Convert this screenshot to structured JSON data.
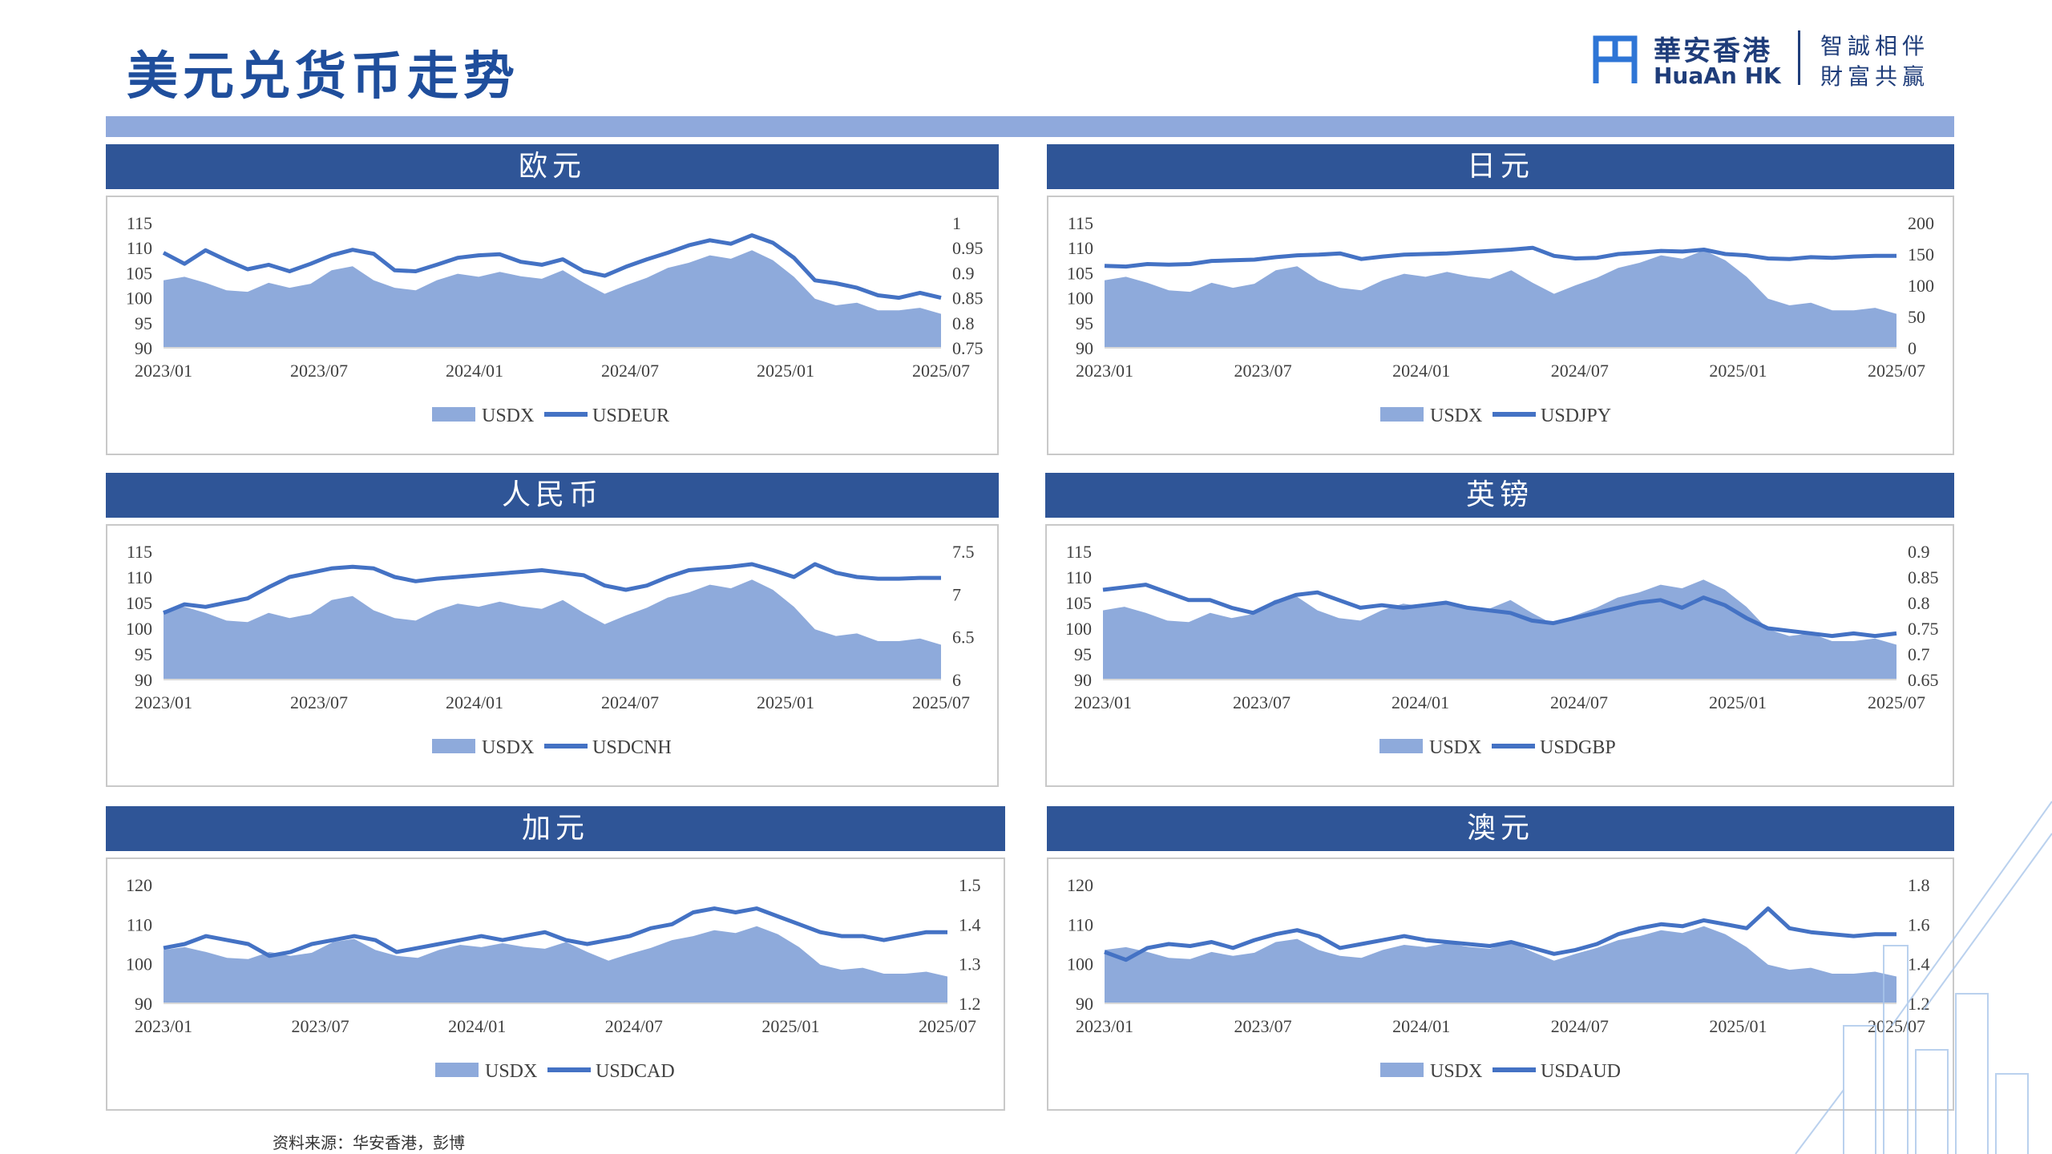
{
  "header": {
    "title": "美元兑货币走势",
    "logo_cn": "華安香港",
    "logo_en": "HuaAn HK",
    "slogan_line1": "智誠相伴",
    "slogan_line2": "財富共贏"
  },
  "footer": {
    "source": "资料来源：华安香港，彭博"
  },
  "colors": {
    "header_bg": "#2f5597",
    "band": "#8fa9dc",
    "area": "#8eaadb",
    "line": "#4472c4",
    "title": "#1f4e9c"
  },
  "chart_data": [
    {
      "type": "area+line",
      "title": "欧元",
      "x_ticks": [
        "2023/01",
        "2023/07",
        "2024/01",
        "2024/07",
        "2025/01",
        "2025/07"
      ],
      "left_axis": {
        "ylim": [
          90,
          115
        ],
        "ticks": [
          "115",
          "110",
          "105",
          "100",
          "95",
          "90"
        ]
      },
      "right_axis": {
        "ylim": [
          0.75,
          1.0
        ],
        "ticks": [
          "1",
          "0.95",
          "0.9",
          "0.85",
          "0.8",
          "0.75"
        ]
      },
      "series": [
        {
          "name": "USDX",
          "kind": "area",
          "axis": "left",
          "values": [
            103.5,
            104.2,
            103.0,
            101.5,
            101.2,
            103.0,
            102.0,
            102.8,
            105.5,
            106.3,
            103.5,
            102.0,
            101.5,
            103.5,
            104.8,
            104.2,
            105.2,
            104.3,
            103.8,
            105.5,
            103.0,
            100.8,
            102.5,
            104.0,
            106.0,
            107.0,
            108.5,
            107.8,
            109.5,
            107.5,
            104.2,
            99.8,
            98.5,
            99.0,
            97.5,
            97.5,
            98.0,
            96.8
          ]
        },
        {
          "name": "USDEUR",
          "kind": "line",
          "axis": "right",
          "values": [
            0.94,
            0.918,
            0.945,
            0.925,
            0.907,
            0.916,
            0.903,
            0.918,
            0.935,
            0.946,
            0.938,
            0.905,
            0.903,
            0.916,
            0.93,
            0.935,
            0.937,
            0.922,
            0.916,
            0.927,
            0.903,
            0.894,
            0.912,
            0.927,
            0.94,
            0.955,
            0.965,
            0.958,
            0.975,
            0.96,
            0.93,
            0.885,
            0.879,
            0.87,
            0.855,
            0.85,
            0.86,
            0.85
          ]
        }
      ]
    },
    {
      "type": "area+line",
      "title": "日元",
      "x_ticks": [
        "2023/01",
        "2023/07",
        "2024/01",
        "2024/07",
        "2025/01",
        "2025/07"
      ],
      "left_axis": {
        "ylim": [
          90,
          115
        ],
        "ticks": [
          "115",
          "110",
          "105",
          "100",
          "95",
          "90"
        ]
      },
      "right_axis": {
        "ylim": [
          0,
          200
        ],
        "ticks": [
          "200",
          "150",
          "100",
          "50",
          "0"
        ]
      },
      "series": [
        {
          "name": "USDX",
          "kind": "area",
          "axis": "left",
          "values": [
            103.5,
            104.2,
            103.0,
            101.5,
            101.2,
            103.0,
            102.0,
            102.8,
            105.5,
            106.3,
            103.5,
            102.0,
            101.5,
            103.5,
            104.8,
            104.2,
            105.2,
            104.3,
            103.8,
            105.5,
            103.0,
            100.8,
            102.5,
            104.0,
            106.0,
            107.0,
            108.5,
            107.8,
            109.5,
            107.5,
            104.2,
            99.8,
            98.5,
            99.0,
            97.5,
            97.5,
            98.0,
            96.8
          ]
        },
        {
          "name": "USDJPY",
          "kind": "line",
          "axis": "right",
          "values": [
            131,
            130,
            134,
            133,
            134,
            139,
            140,
            141,
            145,
            148,
            149,
            151,
            142,
            146,
            149,
            150,
            151,
            153,
            155,
            157,
            160,
            147,
            143,
            144,
            150,
            152,
            155,
            154,
            157,
            150,
            148,
            143,
            142,
            145,
            144,
            146,
            147,
            147
          ]
        }
      ]
    },
    {
      "type": "area+line",
      "title": "人民币",
      "x_ticks": [
        "2023/01",
        "2023/07",
        "2024/01",
        "2024/07",
        "2025/01",
        "2025/07"
      ],
      "left_axis": {
        "ylim": [
          90,
          115
        ],
        "ticks": [
          "115",
          "110",
          "105",
          "100",
          "95",
          "90"
        ]
      },
      "right_axis": {
        "ylim": [
          6,
          7.5
        ],
        "ticks": [
          "7.5",
          "7",
          "6.5",
          "6"
        ]
      },
      "series": [
        {
          "name": "USDX",
          "kind": "area",
          "axis": "left",
          "values": [
            103.5,
            104.2,
            103.0,
            101.5,
            101.2,
            103.0,
            102.0,
            102.8,
            105.5,
            106.3,
            103.5,
            102.0,
            101.5,
            103.5,
            104.8,
            104.2,
            105.2,
            104.3,
            103.8,
            105.5,
            103.0,
            100.8,
            102.5,
            104.0,
            106.0,
            107.0,
            108.5,
            107.8,
            109.5,
            107.5,
            104.2,
            99.8,
            98.5,
            99.0,
            97.5,
            97.5,
            98.0,
            96.8
          ]
        },
        {
          "name": "USDCNH",
          "kind": "line",
          "axis": "right",
          "values": [
            6.78,
            6.88,
            6.85,
            6.9,
            6.95,
            7.08,
            7.2,
            7.25,
            7.3,
            7.32,
            7.3,
            7.2,
            7.15,
            7.18,
            7.2,
            7.22,
            7.24,
            7.26,
            7.28,
            7.25,
            7.22,
            7.1,
            7.05,
            7.1,
            7.2,
            7.28,
            7.3,
            7.32,
            7.35,
            7.28,
            7.2,
            7.35,
            7.25,
            7.2,
            7.18,
            7.18,
            7.19,
            7.19
          ]
        }
      ]
    },
    {
      "type": "area+line",
      "title": "英镑",
      "x_ticks": [
        "2023/01",
        "2023/07",
        "2024/01",
        "2024/07",
        "2025/01",
        "2025/07"
      ],
      "left_axis": {
        "ylim": [
          90,
          115
        ],
        "ticks": [
          "115",
          "110",
          "105",
          "100",
          "95",
          "90"
        ]
      },
      "right_axis": {
        "ylim": [
          0.65,
          0.9
        ],
        "ticks": [
          "0.9",
          "0.85",
          "0.8",
          "0.75",
          "0.7",
          "0.65"
        ]
      },
      "series": [
        {
          "name": "USDX",
          "kind": "area",
          "axis": "left",
          "values": [
            103.5,
            104.2,
            103.0,
            101.5,
            101.2,
            103.0,
            102.0,
            102.8,
            105.5,
            106.3,
            103.5,
            102.0,
            101.5,
            103.5,
            104.8,
            104.2,
            105.2,
            104.3,
            103.8,
            105.5,
            103.0,
            100.8,
            102.5,
            104.0,
            106.0,
            107.0,
            108.5,
            107.8,
            109.5,
            107.5,
            104.2,
            99.8,
            98.5,
            99.0,
            97.5,
            97.5,
            98.0,
            96.8
          ]
        },
        {
          "name": "USDGBP",
          "kind": "line",
          "axis": "right",
          "values": [
            0.825,
            0.83,
            0.835,
            0.82,
            0.805,
            0.805,
            0.79,
            0.78,
            0.8,
            0.815,
            0.82,
            0.805,
            0.79,
            0.795,
            0.79,
            0.795,
            0.8,
            0.79,
            0.785,
            0.78,
            0.765,
            0.76,
            0.77,
            0.78,
            0.79,
            0.8,
            0.805,
            0.79,
            0.81,
            0.795,
            0.77,
            0.75,
            0.745,
            0.74,
            0.735,
            0.74,
            0.735,
            0.74
          ]
        }
      ]
    },
    {
      "type": "area+line",
      "title": "加元",
      "x_ticks": [
        "2023/01",
        "2023/07",
        "2024/01",
        "2024/07",
        "2025/01",
        "2025/07"
      ],
      "left_axis": {
        "ylim": [
          90,
          120
        ],
        "ticks": [
          "120",
          "110",
          "100",
          "90"
        ]
      },
      "right_axis": {
        "ylim": [
          1.2,
          1.5
        ],
        "ticks": [
          "1.5",
          "1.4",
          "1.3",
          "1.2"
        ]
      },
      "series": [
        {
          "name": "USDX",
          "kind": "area",
          "axis": "left",
          "values": [
            103.5,
            104.2,
            103.0,
            101.5,
            101.2,
            103.0,
            102.0,
            102.8,
            105.5,
            106.3,
            103.5,
            102.0,
            101.5,
            103.5,
            104.8,
            104.2,
            105.2,
            104.3,
            103.8,
            105.5,
            103.0,
            100.8,
            102.5,
            104.0,
            106.0,
            107.0,
            108.5,
            107.8,
            109.5,
            107.5,
            104.2,
            99.8,
            98.5,
            99.0,
            97.5,
            97.5,
            98.0,
            96.8
          ]
        },
        {
          "name": "USDCAD",
          "kind": "line",
          "axis": "right",
          "values": [
            1.34,
            1.35,
            1.37,
            1.36,
            1.35,
            1.32,
            1.33,
            1.35,
            1.36,
            1.37,
            1.36,
            1.33,
            1.34,
            1.35,
            1.36,
            1.37,
            1.36,
            1.37,
            1.38,
            1.36,
            1.35,
            1.36,
            1.37,
            1.39,
            1.4,
            1.43,
            1.44,
            1.43,
            1.44,
            1.42,
            1.4,
            1.38,
            1.37,
            1.37,
            1.36,
            1.37,
            1.38,
            1.38
          ]
        }
      ]
    },
    {
      "type": "area+line",
      "title": "澳元",
      "x_ticks": [
        "2023/01",
        "2023/07",
        "2024/01",
        "2024/07",
        "2025/01",
        "2025/07"
      ],
      "left_axis": {
        "ylim": [
          90,
          120
        ],
        "ticks": [
          "120",
          "110",
          "100",
          "90"
        ]
      },
      "right_axis": {
        "ylim": [
          1.2,
          1.8
        ],
        "ticks": [
          "1.8",
          "1.6",
          "1.4",
          "1.2"
        ]
      },
      "series": [
        {
          "name": "USDX",
          "kind": "area",
          "axis": "left",
          "values": [
            103.5,
            104.2,
            103.0,
            101.5,
            101.2,
            103.0,
            102.0,
            102.8,
            105.5,
            106.3,
            103.5,
            102.0,
            101.5,
            103.5,
            104.8,
            104.2,
            105.2,
            104.3,
            103.8,
            105.5,
            103.0,
            100.8,
            102.5,
            104.0,
            106.0,
            107.0,
            108.5,
            107.8,
            109.5,
            107.5,
            104.2,
            99.8,
            98.5,
            99.0,
            97.5,
            97.5,
            98.0,
            96.8
          ]
        },
        {
          "name": "USDAUD",
          "kind": "line",
          "axis": "right",
          "values": [
            1.46,
            1.42,
            1.48,
            1.5,
            1.49,
            1.51,
            1.48,
            1.52,
            1.55,
            1.57,
            1.54,
            1.48,
            1.5,
            1.52,
            1.54,
            1.52,
            1.51,
            1.5,
            1.49,
            1.51,
            1.48,
            1.45,
            1.47,
            1.5,
            1.55,
            1.58,
            1.6,
            1.59,
            1.62,
            1.6,
            1.58,
            1.68,
            1.58,
            1.56,
            1.55,
            1.54,
            1.55,
            1.55
          ]
        }
      ]
    }
  ]
}
